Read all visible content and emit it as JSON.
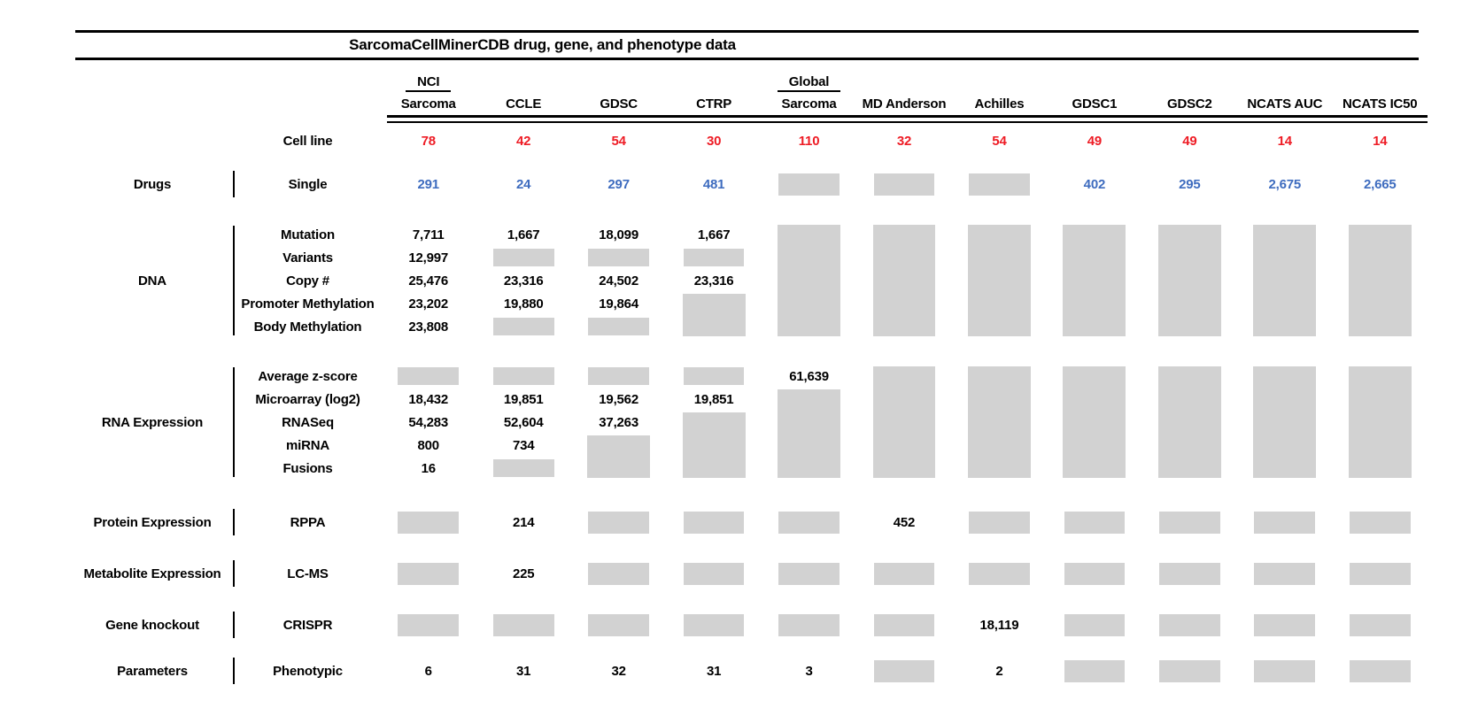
{
  "title": "SarcomaCellMinerCDB drug, gene, and phenotype data",
  "colors": {
    "red": "#ee1c25",
    "blue": "#3e6cbf",
    "gray_box": "#d2d2d2",
    "line": "#000000"
  },
  "columns": [
    {
      "top": "NCI",
      "name": "Sarcoma"
    },
    {
      "top": "",
      "name": "CCLE"
    },
    {
      "top": "",
      "name": "GDSC"
    },
    {
      "top": "",
      "name": "CTRP"
    },
    {
      "top": "Global",
      "name": "Sarcoma"
    },
    {
      "top": "",
      "name": "MD Anderson"
    },
    {
      "top": "",
      "name": "Achilles"
    },
    {
      "top": "",
      "name": "GDSC1"
    },
    {
      "top": "",
      "name": "GDSC2"
    },
    {
      "top": "",
      "name": "NCATS AUC"
    },
    {
      "top": "",
      "name": "NCATS IC50"
    }
  ],
  "cell_line": {
    "label": "Cell line",
    "values": [
      "78",
      "42",
      "54",
      "30",
      "110",
      "32",
      "54",
      "49",
      "49",
      "14",
      "14"
    ]
  },
  "blocks": [
    {
      "category": "Drugs",
      "value_color": "blue",
      "rows": [
        {
          "label": "Single",
          "cells": [
            {
              "v": "291"
            },
            {
              "v": "24"
            },
            {
              "v": "297"
            },
            {
              "v": "481"
            },
            {
              "box": 1
            },
            {
              "box": 1
            },
            {
              "box": 1
            },
            {
              "v": "402"
            },
            {
              "v": "295"
            },
            {
              "v": "2,675"
            },
            {
              "v": "2,665"
            }
          ]
        }
      ]
    },
    {
      "category": "DNA",
      "value_color": "black",
      "rows": [
        {
          "label": "Mutation",
          "cells": [
            {
              "v": "7,711"
            },
            {
              "v": "1,667"
            },
            {
              "v": "18,099"
            },
            {
              "v": "1,667"
            },
            {
              "box": 5
            },
            {
              "box": 5
            },
            {
              "box": 5
            },
            {
              "box": 5
            },
            {
              "box": 5
            },
            {
              "box": 5
            },
            {
              "box": 5
            }
          ]
        },
        {
          "label": "Variants",
          "cells": [
            {
              "v": "12,997"
            },
            {
              "box": 1
            },
            {
              "box": 1
            },
            {
              "box": 1
            },
            null,
            null,
            null,
            null,
            null,
            null,
            null
          ]
        },
        {
          "label": "Copy #",
          "cells": [
            {
              "v": "25,476"
            },
            {
              "v": "23,316"
            },
            {
              "v": "24,502"
            },
            {
              "v": "23,316"
            },
            null,
            null,
            null,
            null,
            null,
            null,
            null
          ]
        },
        {
          "label": "Promoter Methylation",
          "cells": [
            {
              "v": "23,202"
            },
            {
              "v": "19,880"
            },
            {
              "v": "19,864"
            },
            {
              "box": 2
            },
            null,
            null,
            null,
            null,
            null,
            null,
            null
          ]
        },
        {
          "label": "Body Methylation",
          "cells": [
            {
              "v": "23,808"
            },
            {
              "box": 1
            },
            {
              "box": 1
            },
            null,
            null,
            null,
            null,
            null,
            null,
            null,
            null
          ]
        }
      ]
    },
    {
      "category": "RNA Expression",
      "value_color": "black",
      "rows": [
        {
          "label": "Average z-score",
          "cells": [
            {
              "box": 1
            },
            {
              "box": 1
            },
            {
              "box": 1
            },
            {
              "box": 1
            },
            {
              "v": "61,639"
            },
            {
              "box": 5
            },
            {
              "box": 5
            },
            {
              "box": 5
            },
            {
              "box": 5
            },
            {
              "box": 5
            },
            {
              "box": 5
            }
          ]
        },
        {
          "label": "Microarray (log2)",
          "cells": [
            {
              "v": "18,432"
            },
            {
              "v": "19,851"
            },
            {
              "v": "19,562"
            },
            {
              "v": "19,851"
            },
            {
              "box": 4
            },
            null,
            null,
            null,
            null,
            null,
            null
          ]
        },
        {
          "label": "RNASeq",
          "cells": [
            {
              "v": "54,283"
            },
            {
              "v": "52,604"
            },
            {
              "v": "37,263"
            },
            {
              "box": 3
            },
            null,
            null,
            null,
            null,
            null,
            null,
            null
          ]
        },
        {
          "label": "miRNA",
          "cells": [
            {
              "v": "800"
            },
            {
              "v": "734"
            },
            {
              "box": 2
            },
            null,
            null,
            null,
            null,
            null,
            null,
            null,
            null
          ]
        },
        {
          "label": "Fusions",
          "cells": [
            {
              "v": "16"
            },
            {
              "box": 1
            },
            null,
            null,
            null,
            null,
            null,
            null,
            null,
            null,
            null
          ]
        }
      ]
    },
    {
      "category": "Protein Expression",
      "value_color": "black",
      "rows": [
        {
          "label": "RPPA",
          "cells": [
            {
              "box": 1
            },
            {
              "v": "214"
            },
            {
              "box": 1
            },
            {
              "box": 1
            },
            {
              "box": 1
            },
            {
              "v": "452"
            },
            {
              "box": 1
            },
            {
              "box": 1
            },
            {
              "box": 1
            },
            {
              "box": 1
            },
            {
              "box": 1
            }
          ]
        }
      ]
    },
    {
      "category": "Metabolite Expression",
      "value_color": "black",
      "rows": [
        {
          "label": "LC-MS",
          "cells": [
            {
              "box": 1
            },
            {
              "v": "225"
            },
            {
              "box": 1
            },
            {
              "box": 1
            },
            {
              "box": 1
            },
            {
              "box": 1
            },
            {
              "box": 1
            },
            {
              "box": 1
            },
            {
              "box": 1
            },
            {
              "box": 1
            },
            {
              "box": 1
            }
          ]
        }
      ]
    },
    {
      "category": "Gene knockout",
      "value_color": "black",
      "rows": [
        {
          "label": "CRISPR",
          "cells": [
            {
              "box": 1
            },
            {
              "box": 1
            },
            {
              "box": 1
            },
            {
              "box": 1
            },
            {
              "box": 1
            },
            {
              "box": 1
            },
            {
              "v": "18,119"
            },
            {
              "box": 1
            },
            {
              "box": 1
            },
            {
              "box": 1
            },
            {
              "box": 1
            }
          ]
        }
      ]
    },
    {
      "category": "Parameters",
      "value_color": "black",
      "rows": [
        {
          "label": "Phenotypic",
          "cells": [
            {
              "v": "6"
            },
            {
              "v": "31"
            },
            {
              "v": "32"
            },
            {
              "v": "31"
            },
            {
              "v": "3"
            },
            {
              "box": 1
            },
            {
              "v": "2"
            },
            {
              "box": 1
            },
            {
              "box": 1
            },
            {
              "box": 1
            },
            {
              "box": 1
            }
          ]
        }
      ]
    }
  ]
}
